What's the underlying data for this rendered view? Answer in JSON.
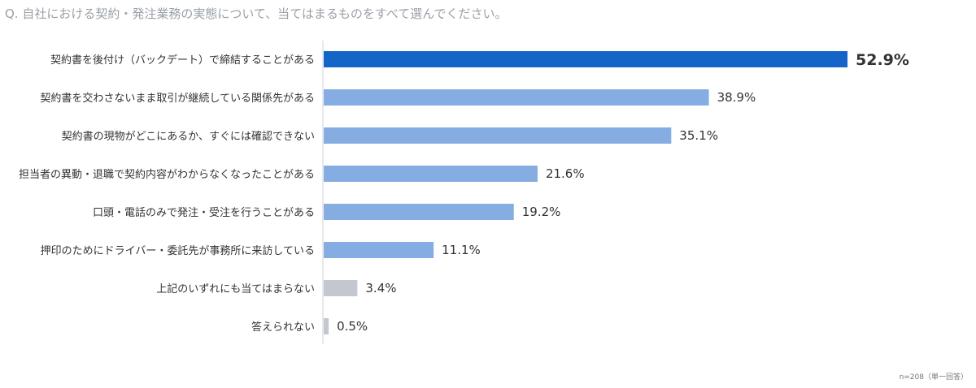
{
  "question": "Q. 自社における契約・発注業務の実態について、当てはまるものをすべて選んでください。",
  "note": "n=208（単一回答）",
  "chart_data": {
    "type": "bar",
    "orientation": "horizontal",
    "categories": [
      "契約書を後付け（バックデート）で締結することがある",
      "契約書を交わさないまま取引が継続している関係先がある",
      "契約書の現物がどこにあるか、すぐには確認できない",
      "担当者の異動・退職で契約内容がわからなくなったことがある",
      "口頭・電話のみで発注・受注を行うことがある",
      "押印のためにドライバー・委託先が事務所に来訪している",
      "上記のいずれにも当てはまらない",
      "答えられない"
    ],
    "values": [
      52.9,
      38.9,
      35.1,
      21.6,
      19.2,
      11.1,
      3.4,
      0.5
    ],
    "value_labels": [
      "52.9%",
      "38.9%",
      "35.1%",
      "21.6%",
      "19.2%",
      "11.1%",
      "3.4%",
      "0.5%"
    ],
    "bar_colors": [
      "#1565c8",
      "#86ade2",
      "#86ade2",
      "#86ade2",
      "#86ade2",
      "#86ade2",
      "#c3c8d0",
      "#c3c8d0"
    ],
    "highlight_index": 0,
    "highlight_label_color": "#1565c8",
    "xlim": [
      0,
      55
    ],
    "grid": false,
    "legend": "none"
  }
}
